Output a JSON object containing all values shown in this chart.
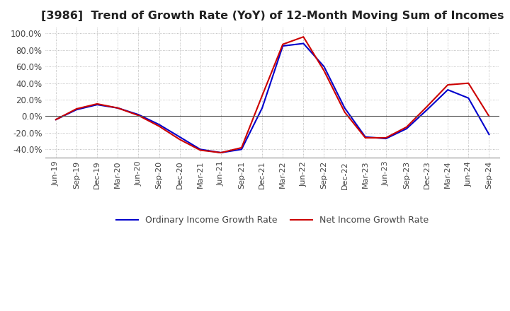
{
  "title": "[3986]  Trend of Growth Rate (YoY) of 12-Month Moving Sum of Incomes",
  "title_fontsize": 11.5,
  "ylim": [
    -0.5,
    1.08
  ],
  "yticks": [
    -0.4,
    -0.2,
    0.0,
    0.2,
    0.4,
    0.6,
    0.8,
    1.0
  ],
  "background_color": "#ffffff",
  "plot_bg_color": "#ffffff",
  "grid_color": "#aaaaaa",
  "ordinary_color": "#0000cc",
  "net_color": "#cc0000",
  "legend_labels": [
    "Ordinary Income Growth Rate",
    "Net Income Growth Rate"
  ],
  "x_labels": [
    "Jun-19",
    "Sep-19",
    "Dec-19",
    "Mar-20",
    "Jun-20",
    "Sep-20",
    "Dec-20",
    "Mar-21",
    "Jun-21",
    "Sep-21",
    "Dec-21",
    "Mar-22",
    "Jun-22",
    "Sep-22",
    "Dec-22",
    "Mar-23",
    "Jun-23",
    "Sep-23",
    "Dec-23",
    "Mar-24",
    "Jun-24",
    "Sep-24"
  ],
  "ordinary_income": [
    -0.04,
    0.08,
    0.14,
    0.1,
    0.02,
    -0.1,
    -0.25,
    -0.4,
    -0.44,
    -0.4,
    0.1,
    0.85,
    0.88,
    0.6,
    0.1,
    -0.25,
    -0.27,
    -0.15,
    0.08,
    0.32,
    0.22,
    -0.22
  ],
  "net_income": [
    -0.04,
    0.09,
    0.15,
    0.1,
    0.01,
    -0.12,
    -0.28,
    -0.41,
    -0.44,
    -0.38,
    0.25,
    0.87,
    0.96,
    0.55,
    0.05,
    -0.26,
    -0.26,
    -0.13,
    0.12,
    0.38,
    0.4,
    0.0
  ]
}
